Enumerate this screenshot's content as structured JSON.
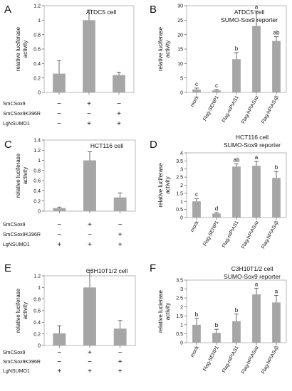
{
  "charts": [
    {
      "type": "bar",
      "panel_label": "A",
      "title_lines": [
        "ATDC5 cell"
      ],
      "ylabel_lines": [
        "relative luciferase",
        "activity"
      ],
      "ylim": [
        0,
        1.2
      ],
      "yticks": [
        "0",
        "0.2",
        "0.4",
        "0.6",
        "0.8",
        "1",
        "1.2"
      ],
      "values": [
        0.26,
        1.0,
        0.24
      ],
      "errors": [
        0.18,
        0.14,
        0.04
      ],
      "condition_rows": [
        {
          "label": "SmCSox9",
          "marks": [
            "−",
            "+",
            "−"
          ]
        },
        {
          "label": "SmCSox9K396R",
          "marks": [
            "−",
            "−",
            "+"
          ]
        },
        {
          "label": "LgNSUMO1",
          "marks": [
            "−",
            "+",
            "+"
          ]
        }
      ]
    },
    {
      "type": "bar",
      "panel_label": "B",
      "title_lines": [
        "ATDC5 cell",
        "SUMO-Sox9 reporter"
      ],
      "ylabel_lines": [
        "relative luciferase",
        "activity"
      ],
      "ylim": [
        0,
        30
      ],
      "yticks": [
        "0",
        "5",
        "10",
        "15",
        "20",
        "25",
        "30"
      ],
      "categories": [
        "mock",
        "Flag-SENP1",
        "Flag-mPIAS1",
        "Flag-hPIASxα",
        "Flag-hPIASxβ"
      ],
      "values": [
        1.0,
        0.7,
        11.5,
        23.0,
        17.8
      ],
      "errors": [
        0.5,
        0.3,
        2.3,
        5.2,
        1.5
      ],
      "letters": [
        "c",
        "c",
        "b",
        "a",
        "ab"
      ]
    },
    {
      "type": "bar",
      "panel_label": "C",
      "title_lines": [
        "HCT116 cell"
      ],
      "ylabel_lines": [
        "relative luciferase",
        "activity"
      ],
      "ylim": [
        0,
        1.4
      ],
      "yticks": [
        "0",
        "0.2",
        "0.4",
        "0.6",
        "0.8",
        "1",
        "1.2",
        "1.4"
      ],
      "values": [
        0.06,
        1.0,
        0.27
      ],
      "errors": [
        0.02,
        0.17,
        0.09
      ],
      "condition_rows": [
        {
          "label": "SmCSox9",
          "marks": [
            "−",
            "+",
            "−"
          ]
        },
        {
          "label": "SmCSox9K396R",
          "marks": [
            "−",
            "−",
            "+"
          ]
        },
        {
          "label": "LgNSUMO1",
          "marks": [
            "+",
            "+",
            "+"
          ]
        }
      ]
    },
    {
      "type": "bar",
      "panel_label": "D",
      "title_lines": [
        "HCT116 cell",
        "SUMO-Sox9 reporter"
      ],
      "ylabel_lines": [
        "relative luciferase",
        "activity"
      ],
      "ylim": [
        0,
        4
      ],
      "yticks": [
        "0",
        "0.5",
        "1",
        "1.5",
        "2",
        "2.5",
        "3",
        "3.5",
        "4"
      ],
      "categories": [
        "mock",
        "Flag-SENP1",
        "Flag-mPIAS1",
        "Flag-hPIASxα",
        "Flag-hPIASxβ"
      ],
      "values": [
        1.0,
        0.25,
        3.15,
        3.2,
        2.45
      ],
      "errors": [
        0.18,
        0.06,
        0.17,
        0.27,
        0.4
      ],
      "letters": [
        "c",
        "d",
        "ab",
        "a",
        "b"
      ]
    },
    {
      "type": "bar",
      "panel_label": "E",
      "title_lines": [
        "C3H10T1/2 cell"
      ],
      "ylabel_lines": [
        "relative luciferase",
        "activity"
      ],
      "ylim": [
        0,
        1.2
      ],
      "yticks": [
        "0",
        "0.2",
        "0.4",
        "0.6",
        "0.8",
        "1",
        "1.2"
      ],
      "values": [
        0.21,
        1.0,
        0.29
      ],
      "errors": [
        0.13,
        0.29,
        0.14
      ],
      "condition_rows": [
        {
          "label": "SmCSox9",
          "marks": [
            "−",
            "+",
            "−"
          ]
        },
        {
          "label": "SmCSox9K396R",
          "marks": [
            "−",
            "−",
            "+"
          ]
        },
        {
          "label": "LgNSUMO1",
          "marks": [
            "+",
            "+",
            "+"
          ]
        }
      ]
    },
    {
      "type": "bar",
      "panel_label": "F",
      "title_lines": [
        "C3H10T1/2 cell",
        "SUMO-Sox9 reporter"
      ],
      "ylabel_lines": [
        "relative lucierase",
        "activity"
      ],
      "ylim": [
        0,
        3.5
      ],
      "yticks": [
        "0",
        "0.5",
        "1",
        "1.5",
        "2",
        "2.5",
        "3",
        "3.5"
      ],
      "categories": [
        "mock",
        "Flag-SENP1",
        "Flag-mPIAS1",
        "Flag-hPIASxα",
        "Flag-hPIASxβ"
      ],
      "values": [
        1.0,
        0.55,
        1.2,
        2.7,
        2.25
      ],
      "errors": [
        0.35,
        0.2,
        0.4,
        0.35,
        0.4
      ],
      "letters": [
        "b",
        "b",
        "b",
        "a",
        "a"
      ]
    }
  ]
}
